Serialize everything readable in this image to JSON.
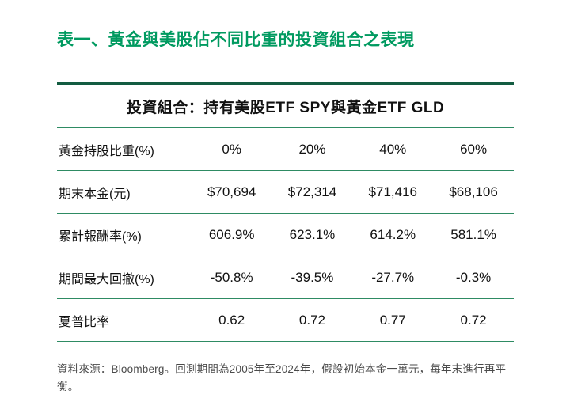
{
  "page": {
    "title": "表一、黃金與美股佔不同比重的投資組合之表現",
    "source_note": "資料來源：Bloomberg。回測期間為2005年至2024年，假設初始本金一萬元，每年末進行再平衡。"
  },
  "table": {
    "header": "投資組合：持有美股ETF SPY與黃金ETF GLD",
    "rows": [
      {
        "label": "黃金持股比重(%)",
        "values": [
          "0%",
          "20%",
          "40%",
          "60%"
        ]
      },
      {
        "label": "期末本金(元)",
        "values": [
          "$70,694",
          "$72,314",
          "$71,416",
          "$68,106"
        ]
      },
      {
        "label": "累計報酬率(%)",
        "values": [
          "606.9%",
          "623.1%",
          "614.2%",
          "581.1%"
        ]
      },
      {
        "label": "期間最大回撤(%)",
        "values": [
          "-50.8%",
          "-39.5%",
          "-27.7%",
          "-0.3%"
        ]
      },
      {
        "label": "夏普比率",
        "values": [
          "0.62",
          "0.72",
          "0.77",
          "0.72"
        ]
      }
    ]
  },
  "colors": {
    "title_green": "#009a60",
    "border_dark_green": "#135c41",
    "rule_green": "#2e8b63"
  }
}
